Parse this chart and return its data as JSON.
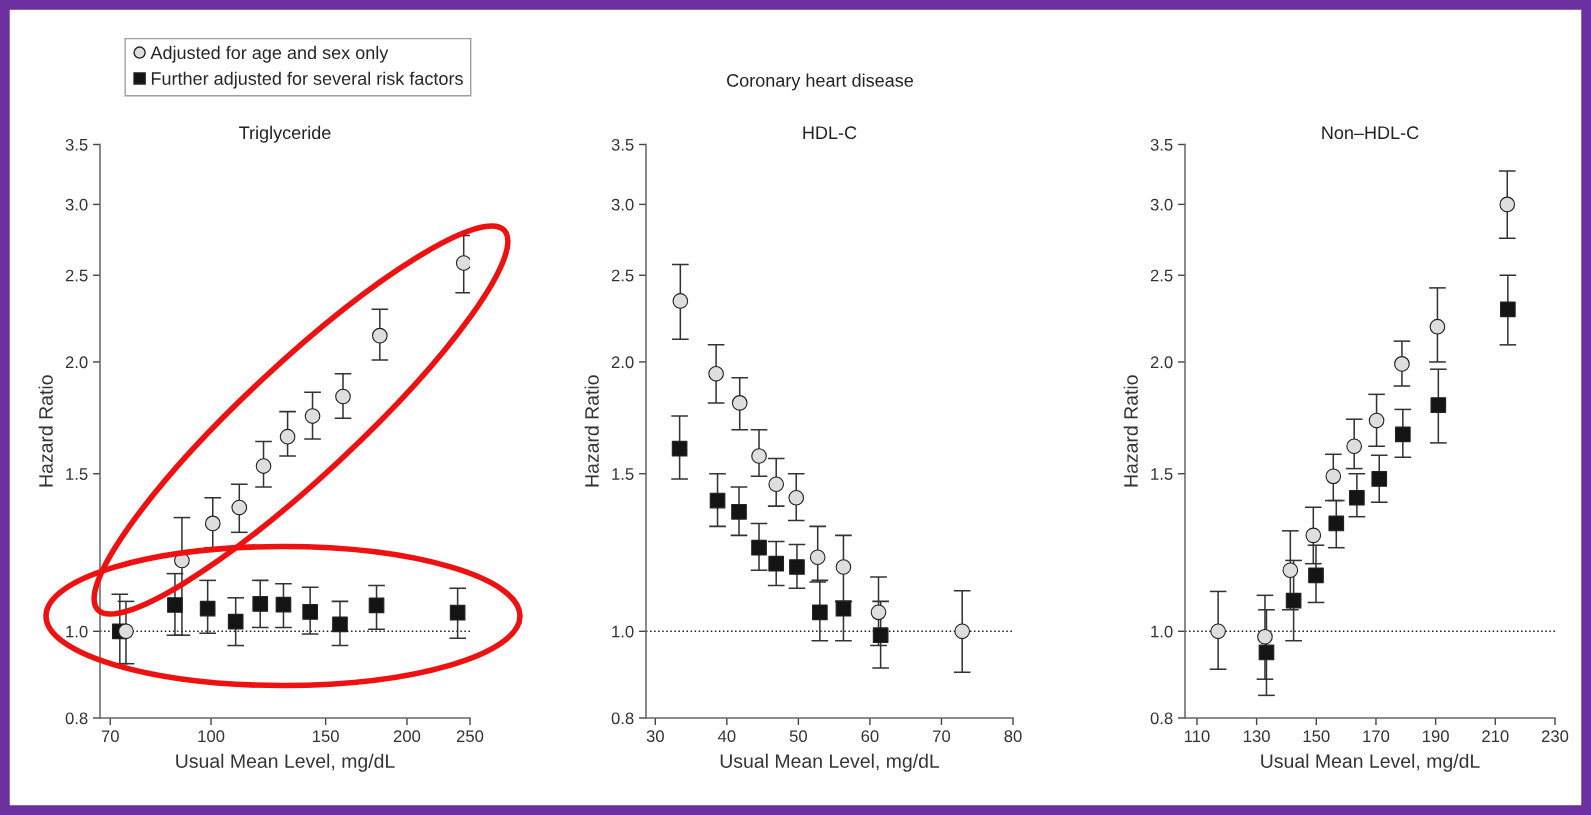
{
  "chart_data": [
    {
      "type": "scatter",
      "title": "Triglyceride",
      "xlabel": "Usual Mean Level, mg/dL",
      "ylabel": "Hazard Ratio",
      "log": "xy",
      "legend": "top left",
      "grid": false,
      "xlim": [
        67.5,
        250
      ],
      "xticks": [
        70,
        100,
        150,
        200,
        250
      ],
      "ylim": [
        0.8,
        3.5
      ],
      "yticks": [
        0.8,
        {
          "value": 1,
          "label": "1.0"
        },
        1.5,
        {
          "value": 2,
          "label": "2.0"
        },
        2.5,
        {
          "value": 3,
          "label": "3.0"
        },
        3.5
      ],
      "ref_lines": [
        {
          "axis": "y",
          "value": 1,
          "color": "#222222",
          "line_style": "dotted"
        }
      ],
      "series": [
        {
          "name": "Adjusted for age and sex only",
          "color": "#dedede",
          "marker": "circle",
          "x": [
            74.0,
            90.2,
            100.6,
            110.5,
            120.4,
            131.1,
            143.2,
            159.5,
            181.7,
            244.5
          ],
          "values": [
            1.0,
            1.2,
            1.32,
            1.375,
            1.53,
            1.65,
            1.74,
            1.83,
            2.14,
            2.58
          ],
          "errors": [
            [
              0.92,
              1.08
            ],
            [
              0.99,
              1.34
            ],
            [
              1.24,
              1.41
            ],
            [
              1.29,
              1.46
            ],
            [
              1.45,
              1.63
            ],
            [
              1.57,
              1.76
            ],
            [
              1.64,
              1.85
            ],
            [
              1.73,
              1.94
            ],
            [
              2.01,
              2.29
            ],
            [
              2.39,
              2.77
            ]
          ]
        },
        {
          "name": "Further adjusted for several risk factors",
          "color": "#141414",
          "marker": "square",
          "x": [
            72.4,
            88.0,
            98.8,
            109.1,
            119.0,
            129.2,
            142.0,
            157.8,
            179.6,
            239.3
          ],
          "values": [
            1.0,
            1.07,
            1.06,
            1.025,
            1.073,
            1.071,
            1.051,
            1.018,
            1.069,
            1.049
          ],
          "errors": [
            [
              0.92,
              1.1
            ],
            [
              0.99,
              1.16
            ],
            [
              0.995,
              1.14
            ],
            [
              0.964,
              1.09
            ],
            [
              1.01,
              1.14
            ],
            [
              1.01,
              1.13
            ],
            [
              0.993,
              1.12
            ],
            [
              0.964,
              1.08
            ],
            [
              1.005,
              1.125
            ],
            [
              0.982,
              1.117
            ]
          ]
        }
      ]
    },
    {
      "type": "scatter",
      "title": "HDL-C",
      "xlabel": "Usual Mean Level, mg/dL",
      "ylabel": "Hazard Ratio",
      "log": true,
      "grid": false,
      "annotations": [
        "Coronary heart disease"
      ],
      "xlim": [
        28.7,
        80
      ],
      "xticks": [
        30,
        40,
        50,
        60,
        70,
        80
      ],
      "ylim": [
        0.8,
        3.5
      ],
      "yticks": [
        0.8,
        {
          "value": 1,
          "label": "1.0"
        },
        1.5,
        {
          "value": 2,
          "label": "2.0"
        },
        2.5,
        {
          "value": 3,
          "label": "3.0"
        },
        3.5
      ],
      "ref_lines": [
        {
          "axis": "y",
          "value": 1,
          "color": "#222222",
          "line_style": "dotted"
        }
      ],
      "series": [
        {
          "color": "#dedede",
          "marker": "circle",
          "x": [
            33.5,
            38.5,
            41.8,
            44.5,
            46.9,
            49.7,
            52.7,
            56.3,
            61.2,
            72.9
          ],
          "values": [
            2.34,
            1.94,
            1.8,
            1.57,
            1.46,
            1.41,
            1.21,
            1.18,
            1.05,
            1.0
          ],
          "errors": [
            [
              2.12,
              2.57
            ],
            [
              1.8,
              2.09
            ],
            [
              1.68,
              1.92
            ],
            [
              1.49,
              1.68
            ],
            [
              1.38,
              1.56
            ],
            [
              1.33,
              1.5
            ],
            [
              1.135,
              1.31
            ],
            [
              1.08,
              1.28
            ],
            [
              0.964,
              1.15
            ],
            [
              0.9,
              1.11
            ]
          ]
        },
        {
          "color": "#141414",
          "marker": "square",
          "x": [
            33.4,
            38.7,
            41.7,
            44.5,
            46.9,
            49.8,
            53.0,
            56.3,
            61.5
          ],
          "values": [
            1.6,
            1.4,
            1.36,
            1.24,
            1.19,
            1.18,
            1.05,
            1.06,
            0.99
          ],
          "errors": [
            [
              1.48,
              1.74
            ],
            [
              1.31,
              1.5
            ],
            [
              1.28,
              1.45
            ],
            [
              1.17,
              1.32
            ],
            [
              1.125,
              1.26
            ],
            [
              1.117,
              1.25
            ],
            [
              0.976,
              1.14
            ],
            [
              0.976,
              1.08
            ],
            [
              0.91,
              1.08
            ]
          ]
        }
      ]
    },
    {
      "type": "scatter",
      "title": "Non–HDL-C",
      "xlabel": "Usual Mean Level, mg/dL",
      "ylabel": "Hazard Ratio",
      "log": true,
      "grid": false,
      "xlim": [
        106,
        230
      ],
      "xticks": [
        110,
        130,
        150,
        170,
        190,
        210,
        230
      ],
      "ylim": [
        0.8,
        3.5
      ],
      "yticks": [
        0.8,
        {
          "value": 1,
          "label": "1.0"
        },
        1.5,
        {
          "value": 2,
          "label": "2.0"
        },
        2.5,
        {
          "value": 3,
          "label": "3.0"
        },
        3.5
      ],
      "ref_lines": [
        {
          "axis": "y",
          "value": 1,
          "color": "#222222",
          "line_style": "dotted"
        }
      ],
      "series": [
        {
          "color": "#dedede",
          "marker": "circle",
          "x": [
            117.1,
            132.8,
            141.3,
            149.0,
            155.7,
            162.7,
            170.2,
            178.7,
            190.6,
            214.0
          ],
          "values": [
            1.0,
            0.986,
            1.17,
            1.28,
            1.49,
            1.61,
            1.72,
            1.99,
            2.19,
            3.0
          ],
          "errors": [
            [
              0.907,
              1.108
            ],
            [
              0.884,
              1.097
            ],
            [
              1.057,
              1.295
            ],
            [
              1.19,
              1.376
            ],
            [
              1.4,
              1.577
            ],
            [
              1.52,
              1.726
            ],
            [
              1.61,
              1.84
            ],
            [
              1.88,
              2.11
            ],
            [
              2.0,
              2.42
            ],
            [
              2.75,
              3.27
            ]
          ]
        },
        {
          "color": "#141414",
          "marker": "square",
          "x": [
            133.3,
            142.4,
            149.9,
            156.7,
            163.6,
            171.1,
            179.0,
            190.9,
            214.2
          ],
          "values": [
            0.947,
            1.082,
            1.155,
            1.32,
            1.41,
            1.48,
            1.66,
            1.79,
            2.29
          ],
          "errors": [
            [
              0.848,
              1.057
            ],
            [
              0.976,
              1.2
            ],
            [
              1.077,
              1.248
            ],
            [
              1.24,
              1.4
            ],
            [
              1.343,
              1.5
            ],
            [
              1.394,
              1.573
            ],
            [
              1.565,
              1.77
            ],
            [
              1.624,
              1.963
            ],
            [
              2.09,
              2.5
            ]
          ]
        }
      ]
    }
  ]
}
